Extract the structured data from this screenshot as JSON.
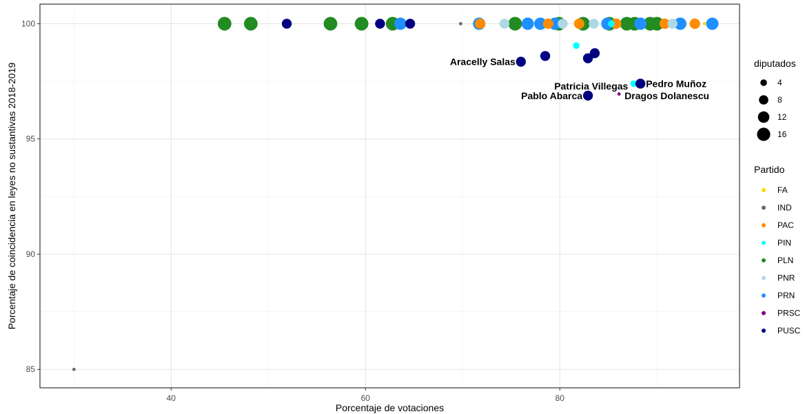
{
  "chart_data": {
    "type": "scatter",
    "title": "",
    "xlabel": "Porcentaje de votaciones",
    "ylabel": "Porcentaje de coincidencia en leyes no sustantivas 2018-2019",
    "xlim": [
      26.5,
      98.5
    ],
    "ylim": [
      84.2,
      100.85
    ],
    "x_ticks": [
      40,
      60,
      80
    ],
    "y_ticks": [
      85,
      90,
      95,
      100
    ],
    "grid": true,
    "legend_position": "right",
    "size_legend": {
      "title": "diputados",
      "values": [
        4,
        8,
        12,
        16
      ]
    },
    "color_legend": {
      "title": "Partido",
      "entries": [
        {
          "name": "FA",
          "color": "#FFD700"
        },
        {
          "name": "IND",
          "color": "#696969"
        },
        {
          "name": "PAC",
          "color": "#FF8C00"
        },
        {
          "name": "PIN",
          "color": "#00FFFF"
        },
        {
          "name": "PLN",
          "color": "#228B22"
        },
        {
          "name": "PNR",
          "color": "#ADD8E6"
        },
        {
          "name": "PRN",
          "color": "#1E90FF"
        },
        {
          "name": "PRSC",
          "color": "#800080"
        },
        {
          "name": "PUSC",
          "color": "#000080"
        }
      ]
    },
    "points": [
      {
        "x": 30.0,
        "y": 85.0,
        "partido": "IND",
        "diputados": 1
      },
      {
        "x": 69.8,
        "y": 100.0,
        "partido": "IND",
        "diputados": 1
      },
      {
        "x": 94.9,
        "y": 100.0,
        "partido": "FA",
        "diputados": 1
      },
      {
        "x": 45.5,
        "y": 100.0,
        "partido": "PLN",
        "diputados": 17
      },
      {
        "x": 48.2,
        "y": 100.0,
        "partido": "PLN",
        "diputados": 17
      },
      {
        "x": 56.4,
        "y": 100.0,
        "partido": "PLN",
        "diputados": 17
      },
      {
        "x": 59.6,
        "y": 100.0,
        "partido": "PLN",
        "diputados": 17
      },
      {
        "x": 62.8,
        "y": 100.0,
        "partido": "PLN",
        "diputados": 17
      },
      {
        "x": 75.4,
        "y": 100.0,
        "partido": "PLN",
        "diputados": 17
      },
      {
        "x": 79.9,
        "y": 100.0,
        "partido": "PLN",
        "diputados": 17
      },
      {
        "x": 82.4,
        "y": 100.0,
        "partido": "PLN",
        "diputados": 17
      },
      {
        "x": 85.1,
        "y": 100.0,
        "partido": "PLN",
        "diputados": 17
      },
      {
        "x": 86.9,
        "y": 100.0,
        "partido": "PLN",
        "diputados": 17
      },
      {
        "x": 87.7,
        "y": 100.0,
        "partido": "PLN",
        "diputados": 17
      },
      {
        "x": 89.3,
        "y": 100.0,
        "partido": "PLN",
        "diputados": 17
      },
      {
        "x": 90.0,
        "y": 100.0,
        "partido": "PLN",
        "diputados": 17
      },
      {
        "x": 63.6,
        "y": 100.0,
        "partido": "PRN",
        "diputados": 14
      },
      {
        "x": 71.7,
        "y": 100.0,
        "partido": "PRN",
        "diputados": 14
      },
      {
        "x": 76.7,
        "y": 100.0,
        "partido": "PRN",
        "diputados": 14
      },
      {
        "x": 78.0,
        "y": 100.0,
        "partido": "PRN",
        "diputados": 14
      },
      {
        "x": 79.5,
        "y": 100.0,
        "partido": "PRN",
        "diputados": 14
      },
      {
        "x": 84.9,
        "y": 100.0,
        "partido": "PRN",
        "diputados": 14
      },
      {
        "x": 88.3,
        "y": 100.0,
        "partido": "PRN",
        "diputados": 14
      },
      {
        "x": 92.4,
        "y": 100.0,
        "partido": "PRN",
        "diputados": 14
      },
      {
        "x": 95.7,
        "y": 100.0,
        "partido": "PRN",
        "diputados": 14
      },
      {
        "x": 71.8,
        "y": 100.0,
        "partido": "PAC",
        "diputados": 10
      },
      {
        "x": 78.8,
        "y": 100.0,
        "partido": "PAC",
        "diputados": 10
      },
      {
        "x": 82.0,
        "y": 100.0,
        "partido": "PAC",
        "diputados": 10
      },
      {
        "x": 85.8,
        "y": 100.0,
        "partido": "PAC",
        "diputados": 10
      },
      {
        "x": 90.8,
        "y": 100.0,
        "partido": "PAC",
        "diputados": 10
      },
      {
        "x": 93.9,
        "y": 100.0,
        "partido": "PAC",
        "diputados": 10
      },
      {
        "x": 74.3,
        "y": 100.0,
        "partido": "PNR",
        "diputados": 9
      },
      {
        "x": 80.3,
        "y": 100.0,
        "partido": "PNR",
        "diputados": 9
      },
      {
        "x": 83.5,
        "y": 100.0,
        "partido": "PNR",
        "diputados": 9
      },
      {
        "x": 91.6,
        "y": 100.0,
        "partido": "PNR",
        "diputados": 9
      },
      {
        "x": 81.7,
        "y": 99.05,
        "partido": "PIN",
        "diputados": 4
      },
      {
        "x": 85.3,
        "y": 100.0,
        "partido": "PIN",
        "diputados": 4
      },
      {
        "x": 87.6,
        "y": 97.4,
        "partido": "PIN",
        "diputados": 4
      },
      {
        "x": 86.1,
        "y": 96.95,
        "partido": "PRSC",
        "diputados": 1
      },
      {
        "x": 51.9,
        "y": 100.0,
        "partido": "PUSC",
        "diputados": 9
      },
      {
        "x": 61.5,
        "y": 100.0,
        "partido": "PUSC",
        "diputados": 9
      },
      {
        "x": 64.6,
        "y": 100.0,
        "partido": "PUSC",
        "diputados": 9
      },
      {
        "x": 76.0,
        "y": 98.35,
        "partido": "PUSC",
        "diputados": 9
      },
      {
        "x": 78.5,
        "y": 98.6,
        "partido": "PUSC",
        "diputados": 9
      },
      {
        "x": 82.9,
        "y": 98.5,
        "partido": "PUSC",
        "diputados": 9
      },
      {
        "x": 83.6,
        "y": 98.72,
        "partido": "PUSC",
        "diputados": 9
      },
      {
        "x": 82.9,
        "y": 96.88,
        "partido": "PUSC",
        "diputados": 9
      },
      {
        "x": 88.3,
        "y": 97.4,
        "partido": "PUSC",
        "diputados": 9
      }
    ],
    "annotations": [
      {
        "label": "Aracelly Salas",
        "x": 76.0,
        "y": 98.35,
        "anchor": "end"
      },
      {
        "label": "Patricia Villegas",
        "x": 87.6,
        "y": 97.3,
        "anchor": "end"
      },
      {
        "label": "Pedro Muñoz",
        "x": 88.3,
        "y": 97.4,
        "anchor": "start"
      },
      {
        "label": "Pablo Abarca",
        "x": 82.9,
        "y": 96.88,
        "anchor": "end"
      },
      {
        "label": "Dragos Dolanescu",
        "x": 86.1,
        "y": 96.88,
        "anchor": "start"
      }
    ]
  }
}
